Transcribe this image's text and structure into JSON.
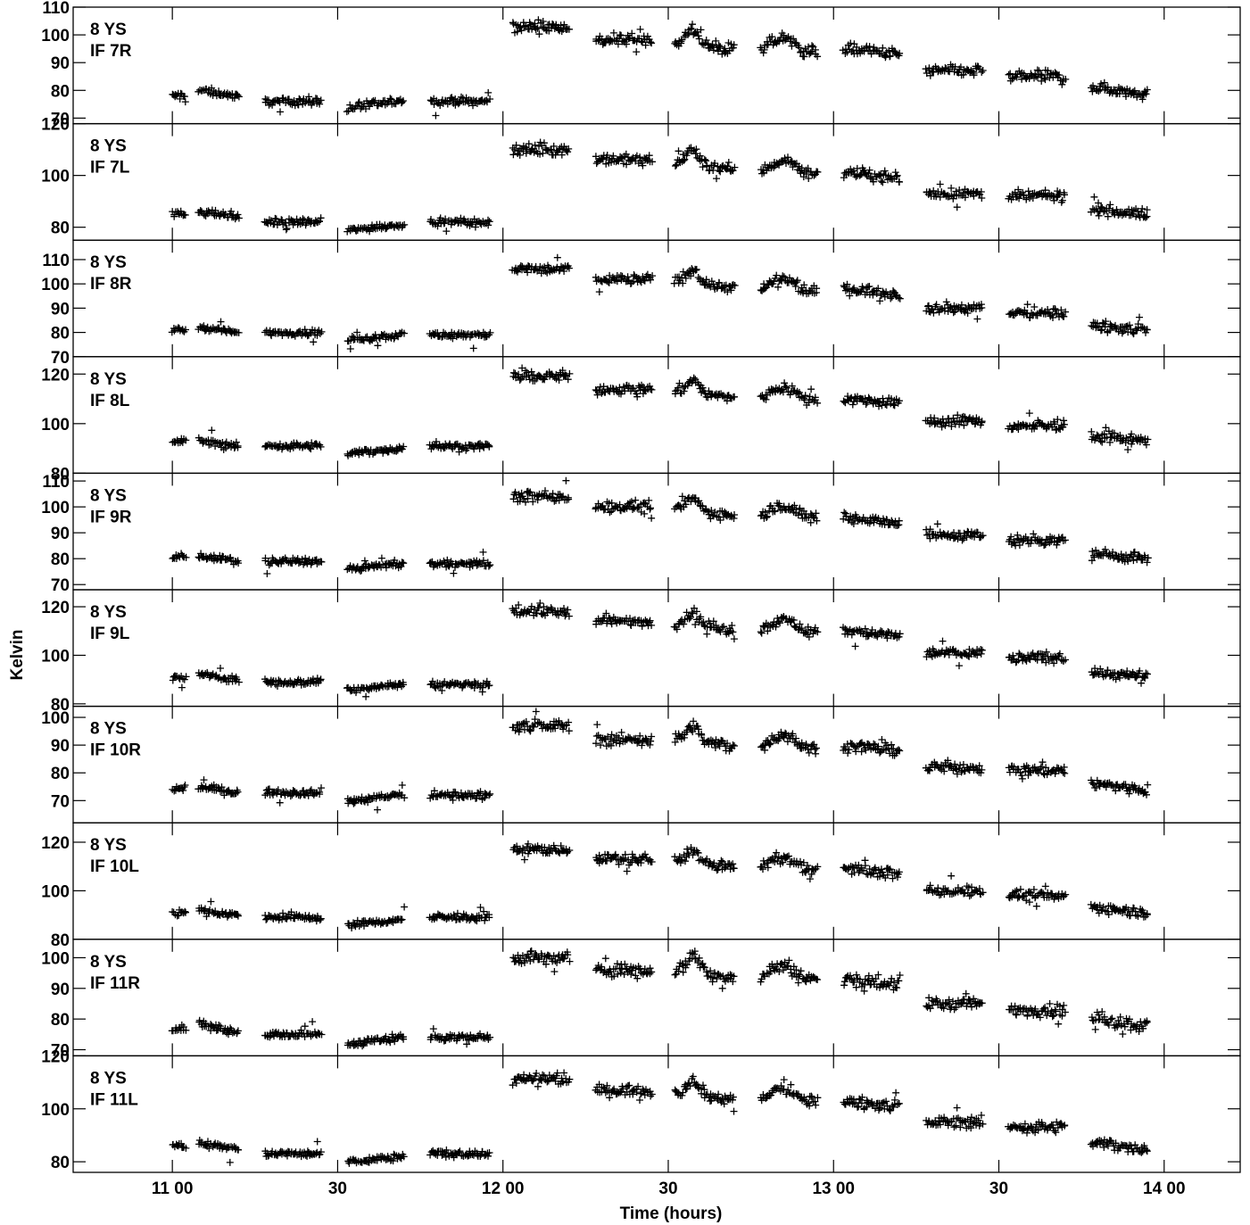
{
  "chart_data": {
    "type": "scatter",
    "marker": "+",
    "color": "#000000",
    "xlabel": "Time (hours)",
    "ylabel": "Kelvin",
    "xlim": [
      10.7,
      14.23
    ],
    "x_ticks": [
      {
        "value": 11.0,
        "label": "11 00"
      },
      {
        "value": 11.5,
        "label": "30"
      },
      {
        "value": 12.0,
        "label": "12 00"
      },
      {
        "value": 12.5,
        "label": "30"
      },
      {
        "value": 13.0,
        "label": "13 00"
      },
      {
        "value": 13.5,
        "label": "30"
      },
      {
        "value": 14.0,
        "label": "14 00"
      }
    ],
    "scans": [
      {
        "start": 11.0,
        "end": 11.04,
        "shape": "flat"
      },
      {
        "start": 11.08,
        "end": 11.2,
        "shape": "down"
      },
      {
        "start": 11.28,
        "end": 11.45,
        "shape": "flat"
      },
      {
        "start": 11.53,
        "end": 11.7,
        "shape": "up"
      },
      {
        "start": 11.78,
        "end": 11.96,
        "shape": "flat"
      },
      {
        "start": 12.03,
        "end": 12.2,
        "shape": "flat"
      },
      {
        "start": 12.28,
        "end": 12.45,
        "shape": "flat"
      },
      {
        "start": 12.52,
        "end": 12.7,
        "shape": "bump"
      },
      {
        "start": 12.78,
        "end": 12.95,
        "shape": "hump"
      },
      {
        "start": 13.03,
        "end": 13.2,
        "shape": "down"
      },
      {
        "start": 13.28,
        "end": 13.45,
        "shape": "flat"
      },
      {
        "start": 13.53,
        "end": 13.7,
        "shape": "flat"
      },
      {
        "start": 13.78,
        "end": 13.95,
        "shape": "down"
      }
    ],
    "panels": [
      {
        "label1": "8 YS",
        "label2": "IF 7R",
        "ylim": [
          68,
          110
        ],
        "yticks": [
          {
            "value": 70,
            "label": "70"
          },
          {
            "value": 80,
            "label": "80"
          },
          {
            "value": 90,
            "label": "90"
          },
          {
            "value": 100,
            "label": "100"
          },
          {
            "value": 110,
            "label": "110"
          }
        ],
        "levels": [
          78,
          79,
          76,
          75,
          76,
          103,
          98,
          97,
          96,
          94,
          87,
          85,
          80
        ]
      },
      {
        "label1": "8 YS",
        "label2": "IF 7L",
        "ylim": [
          75,
          120
        ],
        "yticks": [
          {
            "value": 80,
            "label": "80"
          },
          {
            "value": 100,
            "label": "100"
          },
          {
            "value": 120,
            "label": "120"
          }
        ],
        "levels": [
          85,
          85,
          82,
          80,
          82,
          110,
          106,
          105,
          103,
          100,
          93,
          92,
          86
        ]
      },
      {
        "label1": "8 YS",
        "label2": "IF 8R",
        "ylim": [
          70,
          118
        ],
        "yticks": [
          {
            "value": 70,
            "label": "70"
          },
          {
            "value": 80,
            "label": "80"
          },
          {
            "value": 90,
            "label": "90"
          },
          {
            "value": 100,
            "label": "100"
          },
          {
            "value": 110,
            "label": "110"
          }
        ],
        "levels": [
          81,
          81,
          80,
          78,
          79,
          106,
          102,
          101,
          99,
          97,
          90,
          88,
          82
        ]
      },
      {
        "label1": "8 YS",
        "label2": "IF 8L",
        "ylim": [
          80,
          127
        ],
        "yticks": [
          {
            "value": 80,
            "label": "80"
          },
          {
            "value": 100,
            "label": "100"
          },
          {
            "value": 120,
            "label": "120"
          }
        ],
        "levels": [
          93,
          92,
          91,
          89,
          91,
          119,
          114,
          113,
          112,
          109,
          101,
          99,
          94
        ]
      },
      {
        "label1": "8 YS",
        "label2": "IF 9R",
        "ylim": [
          68,
          113
        ],
        "yticks": [
          {
            "value": 70,
            "label": "70"
          },
          {
            "value": 80,
            "label": "80"
          },
          {
            "value": 90,
            "label": "90"
          },
          {
            "value": 100,
            "label": "100"
          },
          {
            "value": 110,
            "label": "110"
          }
        ],
        "levels": [
          81,
          80,
          79,
          77,
          78,
          104,
          100,
          99,
          98,
          95,
          89,
          87,
          81
        ]
      },
      {
        "label1": "8 YS",
        "label2": "IF 9L",
        "ylim": [
          79,
          127
        ],
        "yticks": [
          {
            "value": 80,
            "label": "80"
          },
          {
            "value": 100,
            "label": "100"
          },
          {
            "value": 120,
            "label": "120"
          }
        ],
        "levels": [
          91,
          91,
          89,
          87,
          88,
          118,
          114,
          113,
          112,
          109,
          101,
          99,
          92
        ]
      },
      {
        "label1": "8 YS",
        "label2": "IF 10R",
        "ylim": [
          62,
          104
        ],
        "yticks": [
          {
            "value": 70,
            "label": "70"
          },
          {
            "value": 80,
            "label": "80"
          },
          {
            "value": 90,
            "label": "90"
          },
          {
            "value": 100,
            "label": "100"
          }
        ],
        "levels": [
          74,
          74,
          73,
          71,
          72,
          97,
          92,
          92,
          91,
          89,
          82,
          81,
          75
        ]
      },
      {
        "label1": "8 YS",
        "label2": "IF 10L",
        "ylim": [
          80,
          128
        ],
        "yticks": [
          {
            "value": 80,
            "label": "80"
          },
          {
            "value": 100,
            "label": "100"
          },
          {
            "value": 120,
            "label": "120"
          }
        ],
        "levels": [
          91,
          91,
          89,
          87,
          89,
          117,
          113,
          112,
          111,
          108,
          100,
          98,
          92
        ]
      },
      {
        "label1": "8 YS",
        "label2": "IF 11R",
        "ylim": [
          68,
          106
        ],
        "yticks": [
          {
            "value": 70,
            "label": "70"
          },
          {
            "value": 80,
            "label": "80"
          },
          {
            "value": 90,
            "label": "90"
          },
          {
            "value": 100,
            "label": "100"
          }
        ],
        "levels": [
          77,
          77,
          75,
          73,
          74,
          100,
          96,
          96,
          95,
          92,
          85,
          83,
          79
        ]
      },
      {
        "label1": "8 YS",
        "label2": "IF 11L",
        "ylim": [
          76,
          120
        ],
        "yticks": [
          {
            "value": 80,
            "label": "80"
          },
          {
            "value": 100,
            "label": "100"
          },
          {
            "value": 120,
            "label": "120"
          }
        ],
        "levels": [
          86,
          86,
          83,
          81,
          83,
          111,
          107,
          106,
          105,
          102,
          95,
          93,
          86
        ]
      }
    ]
  }
}
